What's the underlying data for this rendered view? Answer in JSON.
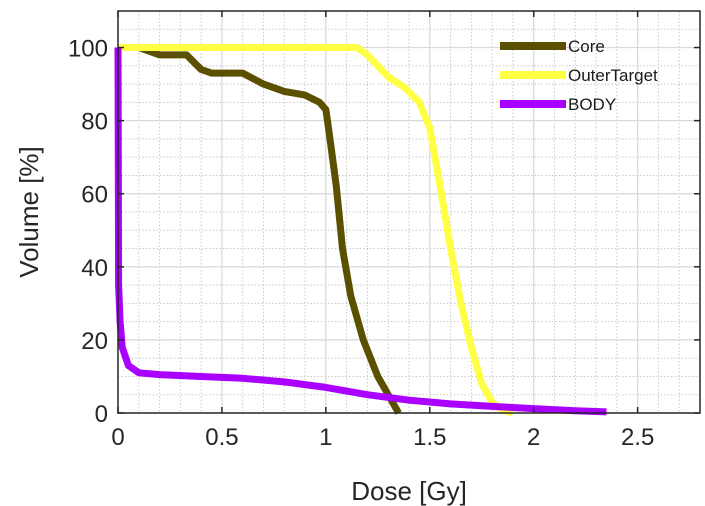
{
  "chart_data": {
    "type": "line",
    "title": "",
    "xlabel": "Dose [Gy]",
    "ylabel": "Volume [%]",
    "xlim": [
      0,
      2.8
    ],
    "ylim": [
      0,
      110
    ],
    "xticks": [
      0,
      0.5,
      1,
      1.5,
      2,
      2.5
    ],
    "xtick_labels": [
      "0",
      "0.5",
      "1",
      "1.5",
      "2",
      "2.5"
    ],
    "yticks": [
      0,
      20,
      40,
      60,
      80,
      100
    ],
    "ytick_labels": [
      "0",
      "20",
      "40",
      "60",
      "80",
      "100"
    ],
    "grid": true,
    "minor_grid": true,
    "legend_position": "top-right",
    "series": [
      {
        "name": "Core",
        "color": "#5b5000",
        "x": [
          0,
          0.1,
          0.2,
          0.33,
          0.4,
          0.45,
          0.6,
          0.7,
          0.8,
          0.9,
          0.97,
          1.0,
          1.02,
          1.05,
          1.08,
          1.12,
          1.18,
          1.25,
          1.3,
          1.35
        ],
        "y": [
          100,
          100,
          98,
          98,
          94,
          93,
          93,
          90,
          88,
          87,
          85,
          83,
          75,
          62,
          45,
          32,
          20,
          10,
          5,
          0
        ]
      },
      {
        "name": "OuterTarget",
        "color": "#ffff44",
        "x": [
          0,
          0.5,
          1.0,
          1.15,
          1.2,
          1.3,
          1.38,
          1.45,
          1.5,
          1.55,
          1.6,
          1.65,
          1.7,
          1.75,
          1.8,
          1.85,
          1.9
        ],
        "y": [
          100,
          100,
          100,
          100,
          98,
          92,
          89,
          85,
          78,
          62,
          45,
          30,
          18,
          8,
          3,
          0.8,
          0
        ]
      },
      {
        "name": "BODY",
        "color": "#aa00ff",
        "x": [
          0,
          0.003,
          0.01,
          0.02,
          0.05,
          0.1,
          0.2,
          0.4,
          0.6,
          0.8,
          1.0,
          1.2,
          1.4,
          1.6,
          1.8,
          2.0,
          2.2,
          2.35
        ],
        "y": [
          100,
          35,
          25,
          18,
          13,
          11,
          10.5,
          10,
          9.5,
          8.5,
          7,
          5,
          3.5,
          2.5,
          1.8,
          1.2,
          0.6,
          0.3
        ]
      }
    ]
  }
}
